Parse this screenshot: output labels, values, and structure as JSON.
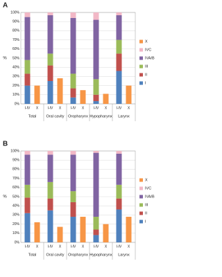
{
  "chart_data": [
    {
      "type": "bar",
      "panel_label": "A",
      "ylabel": "%",
      "categories": [
        "Total",
        "Oral cavity",
        "Oropharynx",
        "Hypopharynx",
        "Larynx"
      ],
      "subcategories": [
        "I-IV",
        "X"
      ],
      "ylim": [
        0,
        100
      ],
      "yticks": [
        {
          "value": 0,
          "label": "0%"
        },
        {
          "value": 10,
          "label": "10%"
        },
        {
          "value": 20,
          "label": "20%"
        },
        {
          "value": 30,
          "label": "30%"
        },
        {
          "value": 40,
          "label": "40%"
        },
        {
          "value": 50,
          "label": "50%"
        },
        {
          "value": 60,
          "label": "60%"
        },
        {
          "value": 70,
          "label": "70%"
        },
        {
          "value": 80,
          "label": "80%"
        },
        {
          "value": 90,
          "label": "90%"
        },
        {
          "value": 100,
          "label": "100%"
        }
      ],
      "grid": true,
      "series": [
        {
          "name": "I",
          "color": "#4f81bd",
          "bar": 0,
          "values": [
            20,
            25,
            7,
            3,
            36
          ]
        },
        {
          "name": "II",
          "color": "#c0504d",
          "bar": 0,
          "values": [
            13,
            17,
            10,
            7,
            19
          ]
        },
        {
          "name": "III",
          "color": "#9bbb59",
          "bar": 0,
          "values": [
            15,
            13,
            16,
            17,
            15
          ]
        },
        {
          "name": "IVA/B",
          "color": "#8064a2",
          "bar": 0,
          "values": [
            47,
            42,
            61,
            65,
            27
          ]
        },
        {
          "name": "IVC",
          "color": "#f2b8c6",
          "bar": 0,
          "values": [
            5,
            3,
            6,
            8,
            3
          ]
        },
        {
          "name": "X",
          "color": "#f79646",
          "bar": 1,
          "values": [
            20,
            28,
            15,
            11,
            20
          ]
        }
      ]
    },
    {
      "type": "bar",
      "panel_label": "B",
      "ylabel": "%",
      "categories": [
        "Total",
        "Oral cavity",
        "Oropharynx",
        "Hypopharynx",
        "Larynx"
      ],
      "subcategories": [
        "I-IV",
        "X"
      ],
      "ylim": [
        0,
        100
      ],
      "yticks": [
        {
          "value": 0,
          "label": "0%"
        },
        {
          "value": 10,
          "label": "10%"
        },
        {
          "value": 20,
          "label": "20%"
        },
        {
          "value": 30,
          "label": "30%"
        },
        {
          "value": 40,
          "label": "40%"
        },
        {
          "value": 50,
          "label": "50%"
        },
        {
          "value": 60,
          "label": "60%"
        },
        {
          "value": 70,
          "label": "70%"
        },
        {
          "value": 80,
          "label": "80%"
        },
        {
          "value": 90,
          "label": "90%"
        },
        {
          "value": 100,
          "label": "100%"
        }
      ],
      "grid": true,
      "series": [
        {
          "name": "I",
          "color": "#4f81bd",
          "bar": 0,
          "values": [
            32,
            35,
            28,
            8,
            36
          ]
        },
        {
          "name": "II",
          "color": "#c0504d",
          "bar": 0,
          "values": [
            17,
            13,
            16,
            6,
            12
          ]
        },
        {
          "name": "III",
          "color": "#9bbb59",
          "bar": 0,
          "values": [
            14,
            18,
            12,
            14,
            15
          ]
        },
        {
          "name": "IVA/B",
          "color": "#8064a2",
          "bar": 0,
          "values": [
            33,
            30,
            40,
            70,
            34
          ]
        },
        {
          "name": "IVC",
          "color": "#f2b8c6",
          "bar": 0,
          "values": [
            4,
            4,
            4,
            2,
            3
          ]
        },
        {
          "name": "X",
          "color": "#f79646",
          "bar": 1,
          "values": [
            22,
            17,
            28,
            20,
            28
          ]
        }
      ]
    }
  ]
}
